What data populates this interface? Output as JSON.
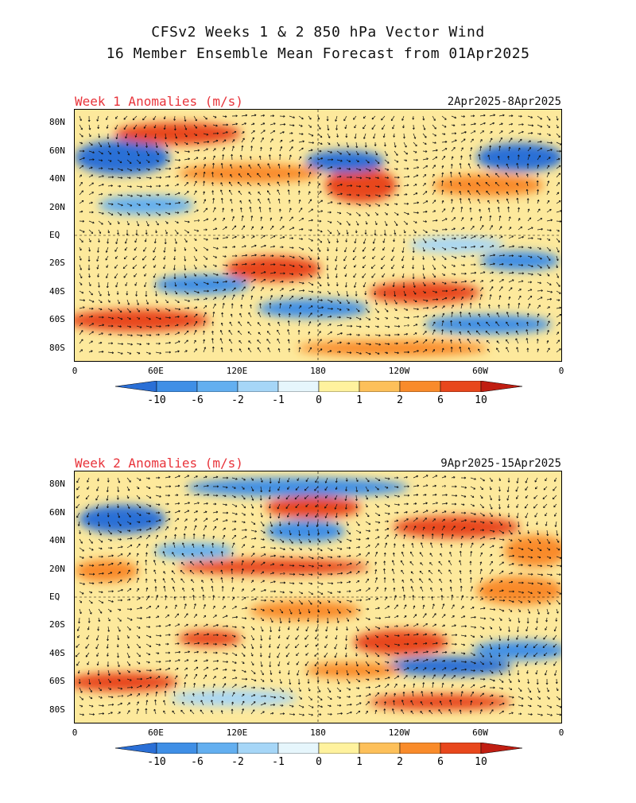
{
  "header": {
    "title_line1": "CFSv2 Weeks 1 & 2 850 hPa Vector Wind",
    "title_line2": "16 Member Ensemble Mean Forecast from 01Apr2025"
  },
  "panels": [
    {
      "title": "Week 1 Anomalies (m/s)",
      "date_range": "2Apr2025-8Apr2025"
    },
    {
      "title": "Week 2 Anomalies (m/s)",
      "date_range": "9Apr2025-15Apr2025"
    }
  ],
  "axes": {
    "lat_labels": [
      "80N",
      "60N",
      "40N",
      "20N",
      "EQ",
      "20S",
      "40S",
      "60S",
      "80S"
    ],
    "lon_labels": [
      "0",
      "60E",
      "120E",
      "180",
      "120W",
      "60W",
      "0"
    ]
  },
  "colorbar": {
    "labels": [
      "-10",
      "-6",
      "-2",
      "-1",
      "0",
      "1",
      "2",
      "6",
      "10"
    ],
    "colors": [
      "#2a6fd6",
      "#3f8fe6",
      "#63aff0",
      "#a6d6f7",
      "#e6f6fc",
      "#fff29e",
      "#fdc05a",
      "#f98b2a",
      "#e8471c",
      "#c01e12"
    ]
  }
}
